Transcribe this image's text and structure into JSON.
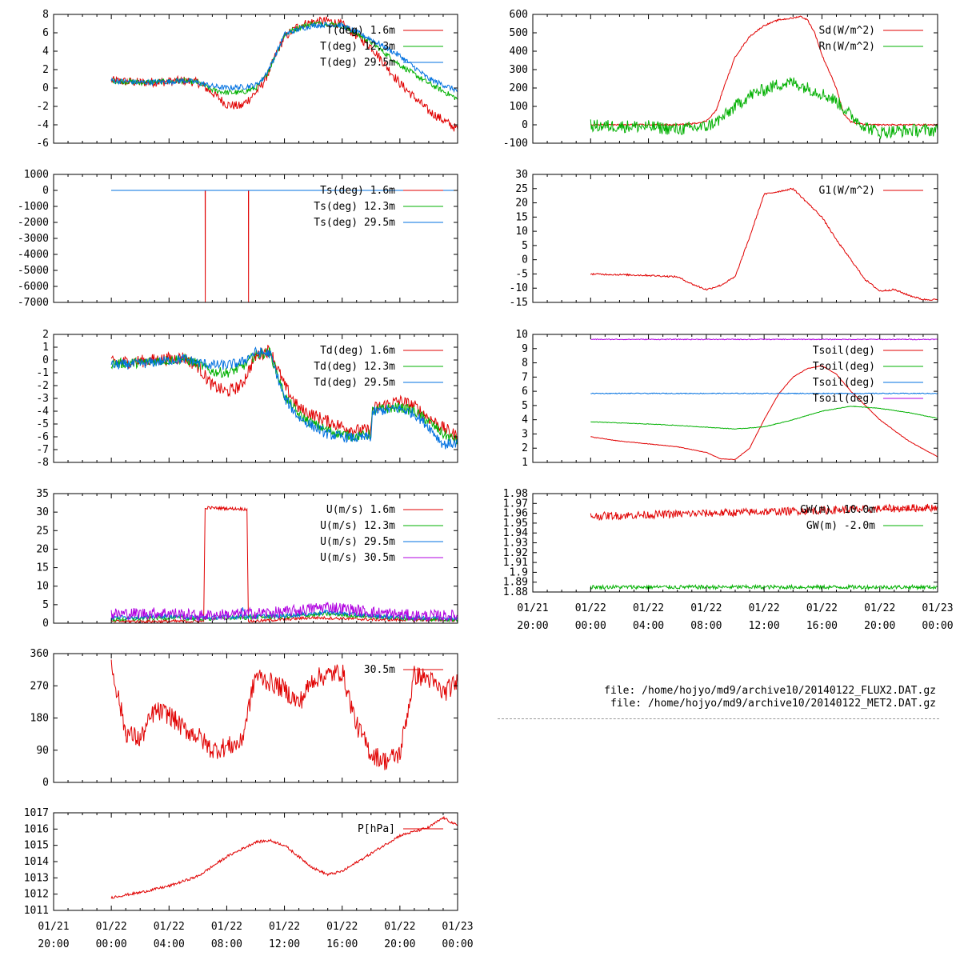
{
  "colors": {
    "red": "#e00000",
    "green": "#00b000",
    "blue": "#0070e0",
    "purple": "#b000e0",
    "axis": "#000000"
  },
  "time_ticks": [
    "01/21\n20:00",
    "01/22\n00:00",
    "01/22\n04:00",
    "01/22\n08:00",
    "01/22\n12:00",
    "01/22\n16:00",
    "01/22\n20:00",
    "01/23\n00:00"
  ],
  "files": [
    "file: /home/hojyo/md9/archive10/20140122_FLUX2.DAT.gz",
    "file: /home/hojyo/md9/archive10/20140122_MET2.DAT.gz"
  ],
  "chart_data": [
    {
      "id": "air-temp",
      "type": "line",
      "x_unit": "hours since 01/21 20:00",
      "xlim": [
        0,
        28
      ],
      "ylim": [
        -6,
        8
      ],
      "yticks": [
        "8",
        "6",
        "4",
        "2",
        "0",
        "-2",
        "-4",
        "-6"
      ],
      "series": [
        {
          "name": "T(deg)  1.6m",
          "color": "red",
          "noise": 0.5,
          "x": [
            4,
            6,
            8,
            9,
            10,
            11,
            12,
            13,
            14,
            14.5,
            15,
            15.5,
            16,
            17,
            18,
            19,
            20,
            22,
            24,
            26,
            28
          ],
          "y": [
            0.8,
            0.6,
            0.7,
            0.8,
            0.6,
            -0.5,
            -1.8,
            -2.0,
            -0.5,
            0.5,
            2.0,
            4.0,
            5.5,
            6.8,
            7.2,
            7.3,
            6.9,
            4.5,
            0.5,
            -2.5,
            -4.5
          ]
        },
        {
          "name": "T(deg) 12.3m",
          "color": "green",
          "noise": 0.3,
          "x": [
            4,
            6,
            8,
            9,
            10,
            11,
            12,
            13,
            14,
            14.5,
            15,
            15.5,
            16,
            17,
            18,
            19,
            20,
            22,
            24,
            26,
            28
          ],
          "y": [
            0.8,
            0.6,
            0.7,
            0.8,
            0.6,
            -0.2,
            -0.5,
            -0.5,
            0.0,
            0.8,
            2.2,
            4.0,
            5.8,
            6.6,
            7.0,
            7.0,
            6.8,
            5.0,
            2.5,
            0.5,
            -1.2
          ]
        },
        {
          "name": "T(deg) 29.5m",
          "color": "blue",
          "noise": 0.3,
          "x": [
            4,
            6,
            8,
            9,
            10,
            11,
            12,
            13,
            14,
            14.5,
            15,
            15.5,
            16,
            17,
            18,
            19,
            20,
            22,
            24,
            26,
            28
          ],
          "y": [
            0.8,
            0.6,
            0.7,
            0.8,
            0.6,
            0.2,
            0.0,
            0.1,
            0.3,
            1.0,
            2.3,
            4.0,
            5.8,
            6.4,
            6.8,
            6.9,
            6.8,
            5.3,
            3.5,
            1.0,
            -0.3
          ]
        }
      ]
    },
    {
      "id": "sonic-temp",
      "type": "line",
      "x_unit": "hours since 01/21 20:00",
      "xlim": [
        0,
        28
      ],
      "ylim": [
        -7000,
        1000
      ],
      "yticks": [
        "1000",
        "0",
        "-1000",
        "-2000",
        "-3000",
        "-4000",
        "-5000",
        "-6000",
        "-7000"
      ],
      "series": [
        {
          "name": "Ts(deg)  1.6m",
          "color": "red",
          "noise": 0,
          "x": [
            4,
            10.5,
            10.51,
            10.52,
            13.5,
            13.51,
            13.52,
            28
          ],
          "y": [
            0,
            0,
            -7000,
            0,
            0,
            -7000,
            0,
            0
          ]
        },
        {
          "name": "Ts(deg) 12.3m",
          "color": "green",
          "noise": 0,
          "x": [
            4,
            28
          ],
          "y": [
            0,
            0
          ]
        },
        {
          "name": "Ts(deg) 29.5m",
          "color": "blue",
          "noise": 0,
          "x": [
            4,
            28
          ],
          "y": [
            0,
            0
          ]
        }
      ]
    },
    {
      "id": "dewpoint",
      "type": "line",
      "x_unit": "hours since 01/21 20:00",
      "xlim": [
        0,
        28
      ],
      "ylim": [
        -8,
        2
      ],
      "yticks": [
        "2",
        "1",
        "0",
        "-1",
        "-2",
        "-3",
        "-4",
        "-5",
        "-6",
        "-7",
        "-8"
      ],
      "series": [
        {
          "name": "Td(deg)  1.6m",
          "color": "red",
          "noise": 0.5,
          "x": [
            4,
            6,
            9,
            10,
            11,
            12,
            13,
            14,
            15,
            16,
            17,
            18,
            19,
            20,
            21,
            22,
            22.1,
            23,
            24,
            25,
            26,
            27,
            28
          ],
          "y": [
            -0.2,
            -0.1,
            0.2,
            -0.5,
            -2.0,
            -2.5,
            -2.0,
            0.3,
            0.8,
            -2.0,
            -3.8,
            -4.3,
            -4.8,
            -5.2,
            -5.5,
            -5.5,
            -3.8,
            -3.5,
            -3.2,
            -3.6,
            -4.5,
            -5.3,
            -6.0
          ]
        },
        {
          "name": "Td(deg) 12.3m",
          "color": "green",
          "noise": 0.4,
          "x": [
            4,
            6,
            9,
            10,
            11,
            12,
            13,
            14,
            15,
            16,
            17,
            18,
            19,
            20,
            21,
            22,
            22.1,
            23,
            24,
            25,
            26,
            27,
            28
          ],
          "y": [
            -0.3,
            -0.2,
            0.1,
            -0.3,
            -0.9,
            -1.0,
            -0.6,
            0.4,
            0.6,
            -2.8,
            -4.3,
            -5.0,
            -5.5,
            -5.8,
            -6.0,
            -5.8,
            -4.0,
            -3.8,
            -3.7,
            -4.0,
            -4.8,
            -5.8,
            -6.3
          ]
        },
        {
          "name": "Td(deg) 29.5m",
          "color": "blue",
          "noise": 0.4,
          "x": [
            4,
            6,
            9,
            10,
            11,
            12,
            13,
            14,
            15,
            16,
            17,
            18,
            19,
            20,
            21,
            22,
            22.1,
            23,
            24,
            25,
            26,
            27,
            28
          ],
          "y": [
            -0.4,
            -0.3,
            0.1,
            -0.2,
            -0.4,
            -0.4,
            -0.2,
            0.6,
            0.5,
            -3.0,
            -4.5,
            -5.2,
            -5.8,
            -6.0,
            -6.1,
            -6.0,
            -4.1,
            -3.9,
            -3.8,
            -4.2,
            -5.2,
            -6.6,
            -6.5
          ]
        }
      ]
    },
    {
      "id": "wind-speed",
      "type": "line",
      "x_unit": "hours since 01/21 20:00",
      "xlim": [
        0,
        28
      ],
      "ylim": [
        0,
        35
      ],
      "yticks": [
        "35",
        "30",
        "25",
        "20",
        "15",
        "10",
        "5",
        "0"
      ],
      "series": [
        {
          "name": "U(m/s)  1.6m",
          "color": "red",
          "noise": 0.4,
          "x": [
            4,
            10.4,
            10.5,
            10.6,
            13.4,
            13.5,
            13.6,
            18,
            22,
            28
          ],
          "y": [
            0.5,
            0.5,
            31.0,
            31.2,
            30.8,
            0.5,
            0.5,
            1.5,
            1.0,
            0.8
          ]
        },
        {
          "name": "U(m/s) 12.3m",
          "color": "green",
          "noise": 0.6,
          "x": [
            4,
            8,
            10,
            13,
            16,
            19,
            22,
            25,
            28
          ],
          "y": [
            1.0,
            1.5,
            1.2,
            1.5,
            1.8,
            2.5,
            1.8,
            1.2,
            1.0
          ]
        },
        {
          "name": "U(m/s) 29.5m",
          "color": "blue",
          "noise": 0.6,
          "x": [
            4,
            8,
            10,
            13,
            13.1,
            13.3,
            16,
            19,
            22,
            25,
            28
          ],
          "y": [
            1.5,
            2.0,
            1.5,
            1.8,
            4.5,
            1.8,
            2.0,
            3.0,
            2.0,
            1.5,
            1.5
          ]
        },
        {
          "name": "U(m/s) 30.5m",
          "color": "purple",
          "noise": 1.6,
          "x": [
            4,
            8,
            10,
            13,
            16,
            19,
            22,
            25,
            28
          ],
          "y": [
            2.5,
            2.8,
            2.0,
            2.5,
            3.0,
            4.5,
            3.0,
            2.0,
            2.0
          ]
        }
      ]
    },
    {
      "id": "wind-direction",
      "type": "line",
      "x_unit": "hours since 01/21 20:00",
      "xlim": [
        0,
        28
      ],
      "ylim": [
        0,
        360
      ],
      "yticks": [
        "360",
        "270",
        "180",
        "90",
        "0"
      ],
      "series": [
        {
          "name": "30.5m",
          "color": "red",
          "noise": 28,
          "x": [
            4,
            5,
            6,
            7,
            8,
            9,
            10,
            11,
            12,
            13,
            14,
            15,
            16,
            17,
            18,
            19,
            20,
            21,
            22,
            23,
            24,
            25,
            26,
            27,
            28
          ],
          "y": [
            330,
            140,
            120,
            200,
            190,
            150,
            130,
            90,
            100,
            110,
            300,
            280,
            260,
            220,
            290,
            300,
            310,
            160,
            80,
            60,
            80,
            300,
            290,
            250,
            280
          ]
        }
      ]
    },
    {
      "id": "pressure",
      "type": "line",
      "x_unit": "hours since 01/21 20:00",
      "xlim": [
        0,
        28
      ],
      "ylim": [
        1011,
        1017
      ],
      "yticks": [
        "1017",
        "1016",
        "1015",
        "1014",
        "1013",
        "1012",
        "1011"
      ],
      "series": [
        {
          "name": "P[hPa]",
          "color": "red",
          "noise": 0.08,
          "x": [
            4,
            6,
            8,
            10,
            12,
            14,
            15,
            16,
            18,
            19,
            20,
            22,
            24,
            26,
            27,
            28
          ],
          "y": [
            1011.8,
            1012.1,
            1012.5,
            1013.1,
            1014.3,
            1015.2,
            1015.3,
            1015.0,
            1013.6,
            1013.2,
            1013.4,
            1014.5,
            1015.6,
            1016.1,
            1016.7,
            1016.2
          ]
        }
      ]
    },
    {
      "id": "radiation",
      "type": "line",
      "x_unit": "hours since 01/21 20:00",
      "xlim": [
        0,
        28
      ],
      "ylim": [
        -100,
        600
      ],
      "yticks": [
        "600",
        "500",
        "400",
        "300",
        "200",
        "100",
        "0",
        "-100"
      ],
      "series": [
        {
          "name": "Sd(W/m^2)",
          "color": "red",
          "noise": 4,
          "x": [
            4,
            10,
            11,
            12,
            12.7,
            13.2,
            14,
            15,
            16,
            17,
            18,
            18.5,
            19,
            19.5,
            20,
            21,
            21.5,
            22,
            23,
            28
          ],
          "y": [
            0,
            0,
            5,
            20,
            80,
            200,
            370,
            480,
            540,
            570,
            580,
            590,
            570,
            500,
            380,
            200,
            60,
            15,
            0,
            0
          ]
        },
        {
          "name": "Rn(W/m^2)",
          "color": "green",
          "noise": 35,
          "x": [
            4,
            8,
            10,
            12,
            13,
            14,
            15,
            16,
            17,
            18,
            19,
            20,
            21,
            22,
            23,
            24,
            26,
            28
          ],
          "y": [
            -5,
            -10,
            -25,
            -10,
            30,
            100,
            160,
            190,
            220,
            230,
            200,
            170,
            130,
            50,
            -10,
            -40,
            -30,
            -30
          ]
        }
      ]
    },
    {
      "id": "soil-heat-flux",
      "type": "line",
      "x_unit": "hours since 01/21 20:00",
      "xlim": [
        0,
        28
      ],
      "ylim": [
        -15,
        30
      ],
      "yticks": [
        "30",
        "25",
        "20",
        "15",
        "10",
        "5",
        "0",
        "-5",
        "-10",
        "-15"
      ],
      "series": [
        {
          "name": "G1(W/m^2)",
          "color": "red",
          "noise": 0.3,
          "x": [
            4,
            8,
            10,
            11,
            12,
            13,
            14,
            15,
            16,
            17,
            18,
            19,
            20,
            21,
            22,
            23,
            24,
            25,
            26,
            27,
            28
          ],
          "y": [
            -5,
            -5.5,
            -6,
            -8.5,
            -10.5,
            -9,
            -6,
            8,
            23,
            24,
            25,
            20,
            15,
            7,
            0,
            -7,
            -11,
            -10.5,
            -12.5,
            -14,
            -14
          ]
        }
      ]
    },
    {
      "id": "soil-temp",
      "type": "line",
      "x_unit": "hours since 01/21 20:00",
      "xlim": [
        0,
        28
      ],
      "ylim": [
        1,
        10
      ],
      "yticks": [
        "10",
        "9",
        "8",
        "7",
        "6",
        "5",
        "4",
        "3",
        "2",
        "1"
      ],
      "series": [
        {
          "name": "Tsoil(deg)",
          "color": "red",
          "noise": 0.02,
          "x": [
            4,
            6,
            8,
            10,
            12,
            13,
            14,
            15,
            16,
            17,
            18,
            19,
            20,
            21,
            22,
            24,
            26,
            28
          ],
          "y": [
            2.8,
            2.5,
            2.3,
            2.1,
            1.7,
            1.25,
            1.2,
            2.0,
            4.0,
            5.8,
            7.0,
            7.6,
            7.8,
            7.2,
            6.0,
            4.0,
            2.5,
            1.4
          ]
        },
        {
          "name": "Tsoil(deg)",
          "color": "green",
          "noise": 0.02,
          "x": [
            4,
            8,
            10,
            14,
            16,
            18,
            20,
            22,
            24,
            26,
            28
          ],
          "y": [
            3.85,
            3.7,
            3.6,
            3.35,
            3.5,
            4.0,
            4.6,
            4.95,
            4.8,
            4.5,
            4.1
          ]
        },
        {
          "name": "Tsoil(deg)",
          "color": "blue",
          "noise": 0.03,
          "x": [
            4,
            28
          ],
          "y": [
            5.85,
            5.85
          ]
        },
        {
          "name": "Tsoil(deg)",
          "color": "purple",
          "noise": 0.03,
          "x": [
            4,
            28
          ],
          "y": [
            9.65,
            9.65
          ]
        }
      ]
    },
    {
      "id": "groundwater",
      "type": "line",
      "x_unit": "hours since 01/21 20:00",
      "xlim": [
        0,
        28
      ],
      "ylim": [
        1.88,
        1.98
      ],
      "yticks": [
        "1.98",
        "1.97",
        "1.96",
        "1.95",
        "1.94",
        "1.93",
        "1.92",
        "1.91",
        "1.9",
        "1.89",
        "1.88"
      ],
      "series": [
        {
          "name": "GW(m) -10.0m",
          "color": "red",
          "noise": 0.004,
          "x": [
            4,
            28
          ],
          "y": [
            1.957,
            1.966
          ]
        },
        {
          "name": "GW(m) -2.0m",
          "color": "green",
          "noise": 0.002,
          "x": [
            4,
            28
          ],
          "y": [
            1.885,
            1.885
          ]
        }
      ]
    }
  ]
}
